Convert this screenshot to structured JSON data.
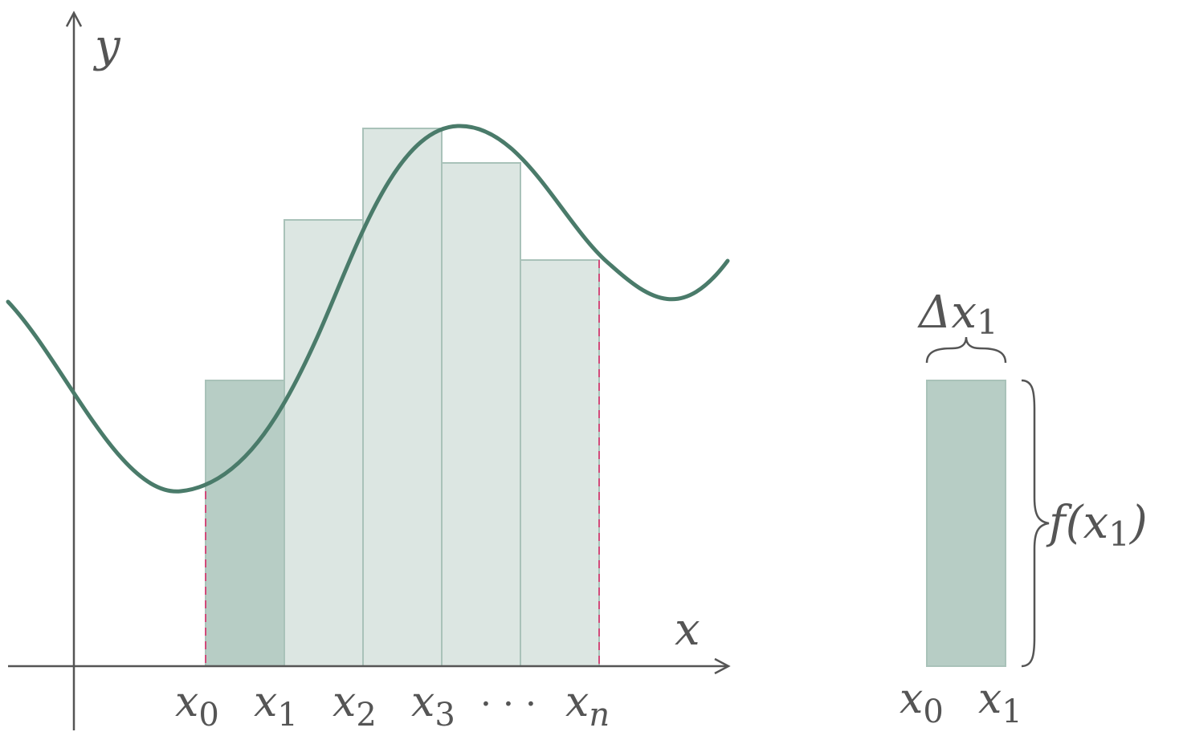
{
  "colors": {
    "axis": "#555555",
    "curve": "#4a7b6a",
    "bar_light": "#dce6e2",
    "bar_dark": "#b7cdc5",
    "bar_stroke": "#a9c2b9",
    "dashed_guide": "#d14a7a"
  },
  "axes": {
    "x_label": "x",
    "y_label": "y"
  },
  "partition_labels": [
    {
      "base": "x",
      "sub": "0"
    },
    {
      "base": "x",
      "sub": "1"
    },
    {
      "base": "x",
      "sub": "2"
    },
    {
      "base": "x",
      "sub": "3"
    },
    {
      "base": "x",
      "sub": "n"
    }
  ],
  "ellipsis": "· · ·",
  "detail": {
    "width_label": {
      "base": "Δx",
      "sub": "1"
    },
    "height_label": {
      "prefix": "f(",
      "base": "x",
      "sub": "1",
      "suffix": ")"
    },
    "left_label": {
      "base": "x",
      "sub": "0"
    },
    "right_label": {
      "base": "x",
      "sub": "1"
    }
  }
}
